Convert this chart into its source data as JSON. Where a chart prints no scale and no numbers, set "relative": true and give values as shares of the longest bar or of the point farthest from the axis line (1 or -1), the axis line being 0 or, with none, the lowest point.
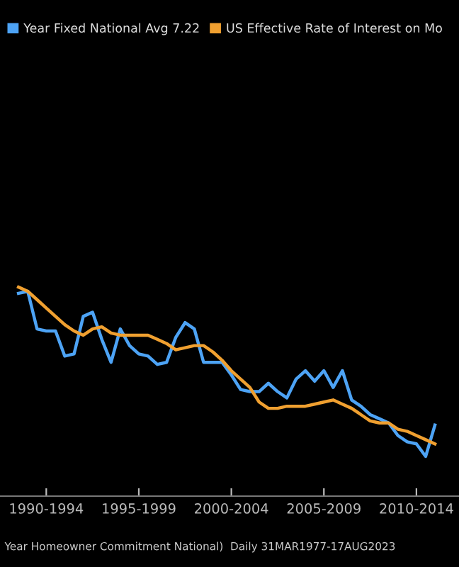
{
  "chart_data": {
    "type": "line",
    "relative": true,
    "legend": "top",
    "tick_labels": "x",
    "categories": [
      null,
      null,
      null,
      "1990-1994",
      null,
      null,
      null,
      null,
      null,
      null,
      null,
      null,
      null,
      "1995-1999",
      null,
      null,
      null,
      null,
      null,
      null,
      null,
      null,
      null,
      "2000-2004",
      null,
      null,
      null,
      null,
      null,
      null,
      null,
      null,
      null,
      "2005-2009",
      null,
      null,
      null,
      null,
      null,
      null,
      null,
      null,
      null,
      "2010-2014",
      null,
      null
    ],
    "annotations": [
      "Year Homeowner Commitment National)  Daily 31MAR1977-17AUG2023"
    ],
    "series": [
      {
        "name": "Year Fixed National Avg 7.22",
        "color": "#4da3f5",
        "values": [
          0.97,
          0.98,
          0.8,
          0.79,
          0.79,
          0.67,
          0.68,
          0.86,
          0.88,
          0.75,
          0.64,
          0.8,
          0.72,
          0.68,
          0.67,
          0.63,
          0.64,
          0.76,
          0.83,
          0.8,
          0.64,
          0.64,
          0.64,
          0.58,
          0.51,
          0.5,
          0.5,
          0.54,
          0.5,
          0.47,
          0.56,
          0.6,
          0.55,
          0.6,
          0.52,
          0.6,
          0.46,
          0.43,
          0.39,
          0.37,
          0.35,
          0.29,
          0.26,
          0.25,
          0.19,
          0.34
        ]
      },
      {
        "name": "US Effective Rate of Interest on Mo",
        "color": "#f0a030",
        "values": [
          1.0,
          0.98,
          0.94,
          0.9,
          0.86,
          0.82,
          0.79,
          0.77,
          0.8,
          0.81,
          0.78,
          0.77,
          0.77,
          0.77,
          0.77,
          0.75,
          0.73,
          0.7,
          0.71,
          0.72,
          0.72,
          0.69,
          0.65,
          0.6,
          0.56,
          0.52,
          0.45,
          0.42,
          0.42,
          0.43,
          0.43,
          0.43,
          0.44,
          0.45,
          0.46,
          0.44,
          0.42,
          0.39,
          0.36,
          0.35,
          0.35,
          0.32,
          0.31,
          0.29,
          0.27,
          0.25
        ]
      }
    ]
  }
}
